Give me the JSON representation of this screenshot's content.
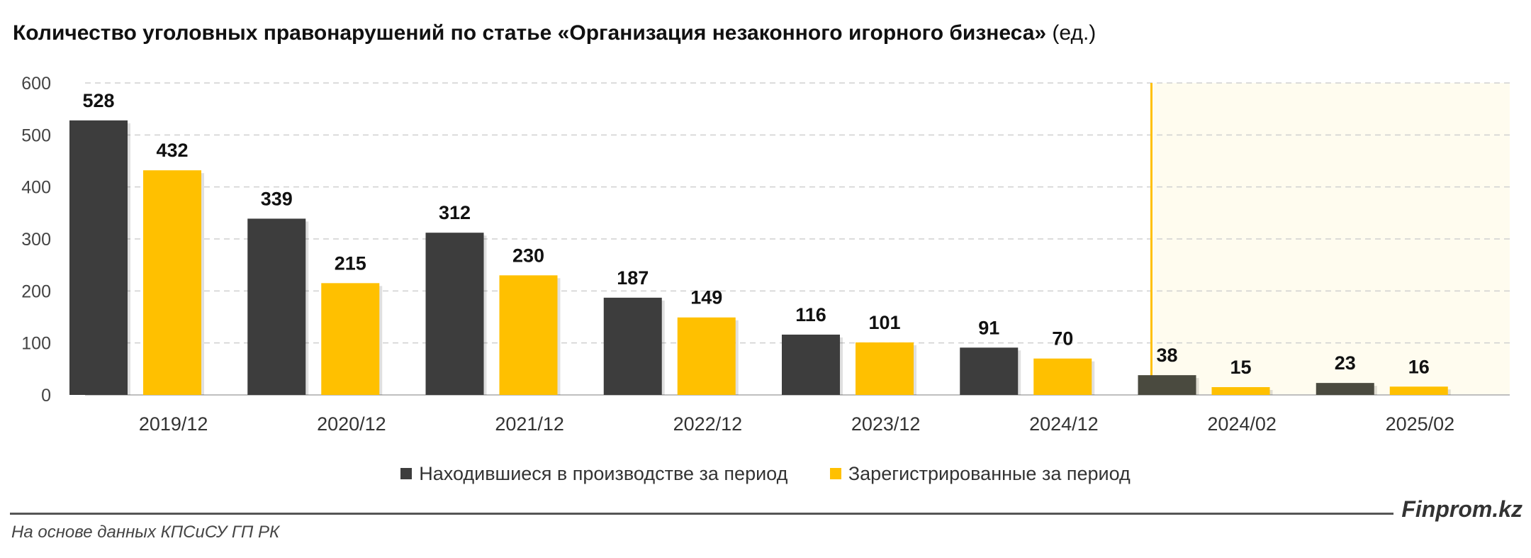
{
  "title": "Количество уголовных правонарушений по статье «Организация незаконного игорного бизнеса»",
  "title_unit": "(ед.)",
  "chart_data": {
    "type": "bar",
    "categories": [
      "2019/12",
      "2020/12",
      "2021/12",
      "2022/12",
      "2023/12",
      "2024/12",
      "2024/02",
      "2025/02"
    ],
    "series": [
      {
        "name": "Находившиеся в производстве за период",
        "values": [
          528,
          339,
          312,
          187,
          116,
          91,
          38,
          23
        ],
        "color": "#3d3d3d",
        "color_highlight": "#4a4a3f"
      },
      {
        "name": "Зарегистрированные за период",
        "values": [
          432,
          215,
          230,
          149,
          101,
          70,
          15,
          16
        ],
        "color": "#ffc000"
      }
    ],
    "yticks": [
      0,
      100,
      200,
      300,
      400,
      500,
      600
    ],
    "ylim": [
      0,
      600
    ],
    "highlight_from_index": 6,
    "highlight_color": "#fffcef",
    "divider_color": "#ffc000",
    "grid": true,
    "legend_position": "bottom"
  },
  "brand": "Finprom.kz",
  "source": "На основе данных КПСиСУ ГП РК"
}
